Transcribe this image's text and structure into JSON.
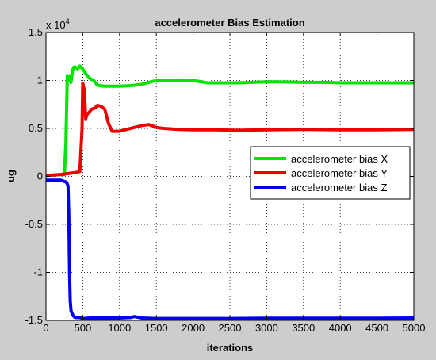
{
  "chart_data": {
    "type": "line",
    "title": "accelerometer Bias Estimation",
    "xlabel": "iterations",
    "ylabel": "ug",
    "y_exponent": "x 10",
    "y_exponent_power": "4",
    "xlim": [
      0,
      5000
    ],
    "ylim": [
      -1.5,
      1.5
    ],
    "xticks": [
      0,
      500,
      1000,
      1500,
      2000,
      2500,
      3000,
      3500,
      4000,
      4500,
      5000
    ],
    "yticks": [
      -1.5,
      -1,
      -0.5,
      0,
      0.5,
      1,
      1.5
    ],
    "xtick_labels": [
      "0",
      "500",
      "1000",
      "1500",
      "2000",
      "2500",
      "3000",
      "3500",
      "4000",
      "4500",
      "5000"
    ],
    "ytick_labels": [
      "-1.5",
      "-1",
      "-0.5",
      "0",
      "0.5",
      "1",
      "1.5"
    ],
    "grid": true,
    "legend_position": "right-middle",
    "series": [
      {
        "name": "accelerometer bias X",
        "color": "#00e600",
        "x": [
          0,
          250,
          270,
          290,
          300,
          320,
          340,
          360,
          380,
          400,
          430,
          460,
          500,
          550,
          600,
          650,
          700,
          800,
          900,
          1000,
          1100,
          1200,
          1300,
          1400,
          1500,
          1600,
          1800,
          2000,
          2200,
          2400,
          2600,
          2800,
          3000,
          3200,
          3500,
          3800,
          4000,
          4200,
          4500,
          4800,
          5000
        ],
        "y": [
          0.01,
          0.02,
          0.35,
          1.05,
          1.0,
          1.05,
          0.98,
          1.1,
          1.14,
          1.14,
          1.12,
          1.15,
          1.12,
          1.06,
          1.02,
          1.0,
          0.95,
          0.94,
          0.94,
          0.94,
          0.945,
          0.95,
          0.96,
          0.98,
          1.0,
          1.0,
          1.005,
          1.0,
          0.975,
          0.975,
          0.975,
          0.98,
          0.985,
          0.985,
          0.98,
          0.98,
          0.975,
          0.975,
          0.975,
          0.975,
          0.975
        ]
      },
      {
        "name": "accelerometer bias Y",
        "color": "#f00000",
        "x": [
          0,
          200,
          300,
          400,
          460,
          490,
          500,
          520,
          540,
          560,
          580,
          620,
          660,
          700,
          750,
          800,
          850,
          900,
          1000,
          1100,
          1200,
          1300,
          1400,
          1500,
          1600,
          1800,
          2000,
          2300,
          2600,
          3000,
          3500,
          4000,
          4500,
          5000
        ],
        "y": [
          0.01,
          0.02,
          0.03,
          0.04,
          0.05,
          0.5,
          0.97,
          0.9,
          0.6,
          0.65,
          0.66,
          0.7,
          0.71,
          0.74,
          0.73,
          0.7,
          0.55,
          0.47,
          0.47,
          0.49,
          0.51,
          0.53,
          0.54,
          0.51,
          0.5,
          0.49,
          0.485,
          0.485,
          0.48,
          0.485,
          0.49,
          0.485,
          0.485,
          0.49
        ]
      },
      {
        "name": "accelerometer bias Z",
        "color": "#0000ee",
        "x": [
          0,
          200,
          280,
          300,
          310,
          320,
          330,
          340,
          360,
          380,
          400,
          450,
          500,
          600,
          800,
          1000,
          1150,
          1200,
          1300,
          1500,
          2000,
          2500,
          3000,
          3500,
          4000,
          4500,
          5000
        ],
        "y": [
          -0.04,
          -0.04,
          -0.06,
          -0.1,
          -0.4,
          -1.0,
          -1.3,
          -1.4,
          -1.44,
          -1.46,
          -1.47,
          -1.47,
          -1.48,
          -1.475,
          -1.475,
          -1.475,
          -1.47,
          -1.46,
          -1.475,
          -1.48,
          -1.48,
          -1.48,
          -1.478,
          -1.478,
          -1.478,
          -1.478,
          -1.475
        ]
      }
    ]
  }
}
